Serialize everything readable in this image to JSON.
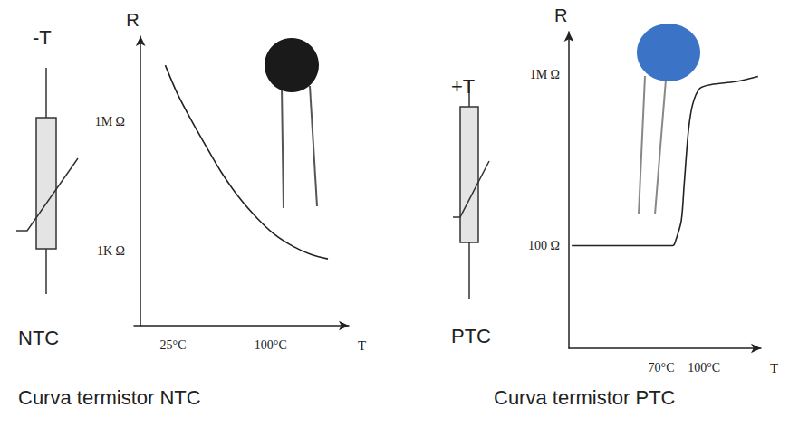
{
  "chart_data": [
    {
      "type": "line",
      "title": "Curva termistor NTC",
      "annotations": [
        "-T",
        "NTC"
      ],
      "xlabel": "T",
      "ylabel": "R",
      "log": "y",
      "grid": false,
      "color": "#222222",
      "xlim": [
        -5,
        160
      ],
      "xticks": [
        {
          "value": 25,
          "label": "25°C"
        },
        {
          "value": 100,
          "label": "100°C"
        }
      ],
      "ylim": [
        18,
        100000000
      ],
      "yticks": [
        {
          "value": 1000,
          "label": "1K Ω"
        },
        {
          "value": 1000000,
          "label": "1M Ω"
        }
      ],
      "x": [
        19,
        28,
        39,
        49,
        62,
        76,
        90,
        103,
        117,
        131,
        144
      ],
      "values": [
        21000000,
        4800000,
        1100000,
        320000,
        68000,
        17000,
        5600,
        2400,
        1280,
        820,
        650
      ]
    },
    {
      "type": "line",
      "title": "Curva termistor PTC",
      "annotations": [
        "+T",
        "PTC"
      ],
      "xlabel": "T",
      "ylabel": "R",
      "log": "y",
      "grid": false,
      "color": "#222222",
      "xlim": [
        5,
        140
      ],
      "xticks": [
        {
          "value": 70,
          "label": "70°C"
        },
        {
          "value": 100,
          "label": "100°C"
        }
      ],
      "ylim": [
        0.4,
        10000000
      ],
      "yticks": [
        {
          "value": 100,
          "label": "100 Ω"
        },
        {
          "value": 1000000,
          "label": "1M Ω"
        }
      ],
      "x": [
        7,
        78,
        80,
        84,
        86,
        89,
        92,
        97,
        105,
        122,
        138
      ],
      "values": [
        100,
        100,
        130,
        380,
        2600,
        47000,
        200000,
        470000,
        580000,
        680000,
        900000
      ]
    }
  ]
}
